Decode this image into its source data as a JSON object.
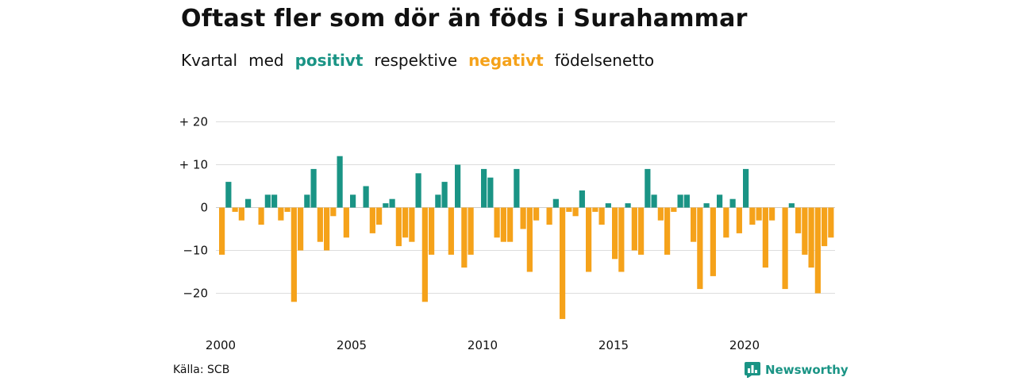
{
  "header": {
    "title": "Oftast fler som dör än föds i Surahammar",
    "subtitle_parts": [
      "Kvartal",
      "med",
      "positivt",
      "respektive",
      "negativt",
      "födelsenetto"
    ]
  },
  "footer": {
    "source": "Källa: SCB",
    "brand": "Newsworthy"
  },
  "colors": {
    "positive": "#1a9485",
    "negative": "#f5a21a",
    "grid": "#dddddd"
  },
  "chart_data": {
    "type": "bar",
    "title": "Oftast fler som dör än föds i Surahammar",
    "subtitle": "Kvartal med positivt respektive negativt födelsenetto",
    "xlabel": "",
    "ylabel": "",
    "ylim": [
      -26,
      20
    ],
    "xlim": [
      2000,
      2023.75
    ],
    "grid": true,
    "y_ticks": [
      {
        "value": 20,
        "label": "+ 20"
      },
      {
        "value": 10,
        "label": "+ 10"
      },
      {
        "value": 0,
        "label": "0"
      },
      {
        "value": -10,
        "label": "−10"
      },
      {
        "value": -20,
        "label": "−20"
      }
    ],
    "x_ticks": [
      {
        "value": 2000,
        "label": "2000"
      },
      {
        "value": 2005,
        "label": "2005"
      },
      {
        "value": 2010,
        "label": "2010"
      },
      {
        "value": 2015,
        "label": "2015"
      },
      {
        "value": 2020,
        "label": "2020"
      }
    ],
    "start": "2000-Q1",
    "values": [
      -11,
      6,
      -1,
      -3,
      2,
      0,
      -4,
      3,
      3,
      -3,
      -1,
      -22,
      -10,
      3,
      9,
      -8,
      -10,
      -2,
      12,
      -7,
      3,
      0,
      5,
      -6,
      -4,
      1,
      2,
      -9,
      -7,
      -8,
      8,
      -22,
      -11,
      3,
      6,
      -11,
      10,
      -14,
      -11,
      0,
      9,
      7,
      -7,
      -8,
      -8,
      9,
      -5,
      -15,
      -3,
      0,
      -4,
      2,
      -26,
      -1,
      -2,
      4,
      -15,
      -1,
      -4,
      1,
      -12,
      -15,
      1,
      -10,
      -11,
      9,
      3,
      -3,
      -11,
      -1,
      3,
      3,
      -8,
      -19,
      1,
      -16,
      3,
      -7,
      2,
      -6,
      9,
      -4,
      -3,
      -14,
      -3,
      0,
      -19,
      1,
      -6,
      -11,
      -14,
      -20,
      -9,
      -7
    ]
  }
}
